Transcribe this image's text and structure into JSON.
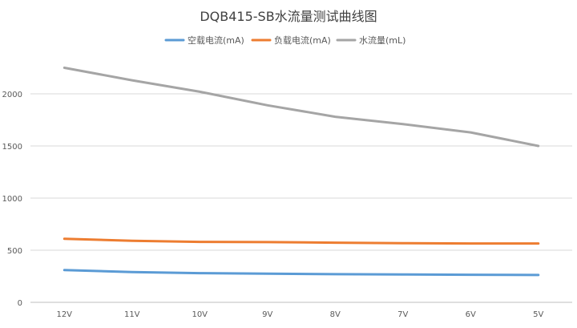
{
  "chart_data": {
    "type": "line",
    "title": "DQB415-SB水流量测试曲线图",
    "xlabel": "",
    "ylabel": "",
    "categories": [
      "12V",
      "11V",
      "10V",
      "9V",
      "8V",
      "7V",
      "6V",
      "5V"
    ],
    "ylim": [
      0,
      2500
    ],
    "yticks": [
      0,
      500,
      1000,
      1500,
      2000
    ],
    "grid": true,
    "legend_position": "top",
    "series": [
      {
        "name": "空载电流(mA)",
        "color": "#5b9bd5",
        "values": [
          310,
          290,
          280,
          275,
          270,
          268,
          265,
          262
        ]
      },
      {
        "name": "负载电流(mA)",
        "color": "#ed7d31",
        "values": [
          610,
          590,
          580,
          578,
          572,
          568,
          565,
          565
        ]
      },
      {
        "name": "水流量(mL)",
        "color": "#a5a5a5",
        "values": [
          2250,
          2130,
          2020,
          1890,
          1780,
          1710,
          1630,
          1500
        ]
      }
    ]
  }
}
